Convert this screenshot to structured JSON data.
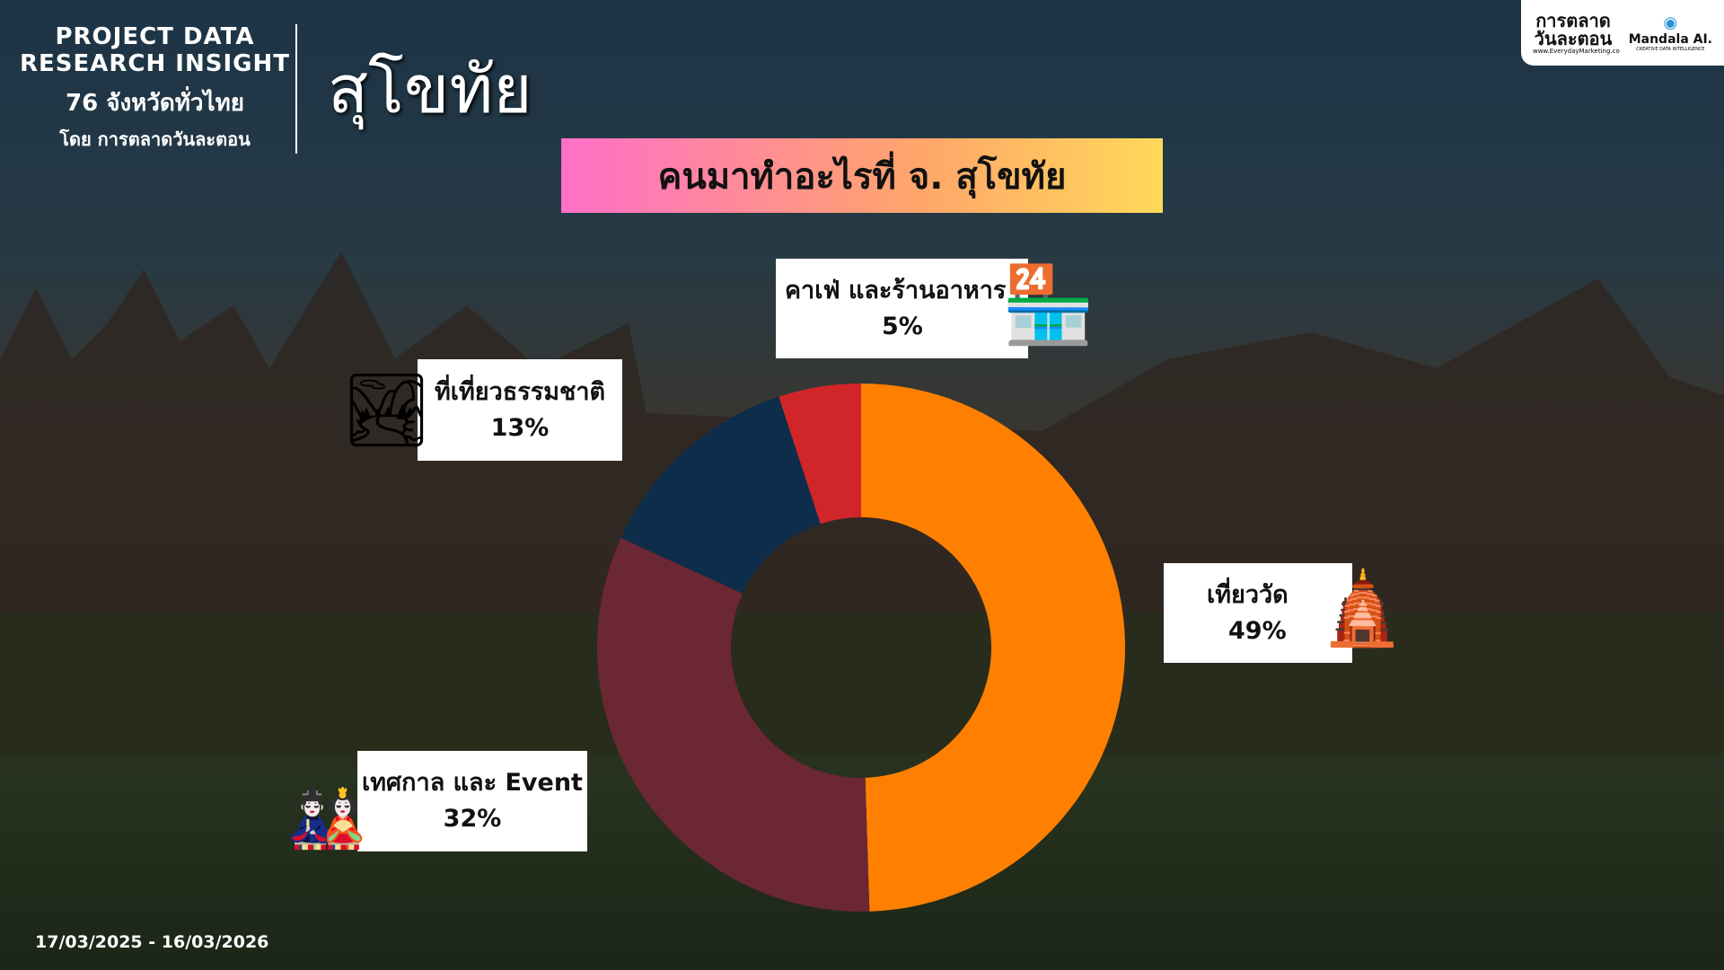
{
  "header": {
    "line1": "PROJECT DATA",
    "line2": "RESEARCH INSIGHT",
    "line3": "76 จังหวัดทั่วไทย",
    "line4": "โดย การตลาดวันละตอน",
    "province": "สุโขทัย"
  },
  "logos": {
    "left": "การตลาดวันละตอน",
    "left_url": "www.EverydayMarketing.co",
    "right": "Mandala AI.",
    "right_sub": "CREATIVE DATA INTELLIGENCE"
  },
  "date_range": "17/03/2025 - 16/03/2026",
  "chart_data": {
    "type": "pie",
    "donut": true,
    "title": "คนมาทำอะไรที่ จ. สุโขทัย",
    "categories": [
      "เที่ยววัด",
      "เทศกาล และ Event",
      "ที่เที่ยวธรรมชาติ",
      "คาเฟ่ และร้านอาหาร"
    ],
    "values": [
      49,
      32,
      13,
      5
    ],
    "labels": [
      "49%",
      "32%",
      "13%",
      "5%"
    ],
    "colors": [
      "#FF8000",
      "#6B2733",
      "#0D2D4A",
      "#D0262A"
    ],
    "icons": [
      "temple-icon",
      "festival-icon",
      "mountain-tree-icon",
      "cafe-icon"
    ]
  }
}
